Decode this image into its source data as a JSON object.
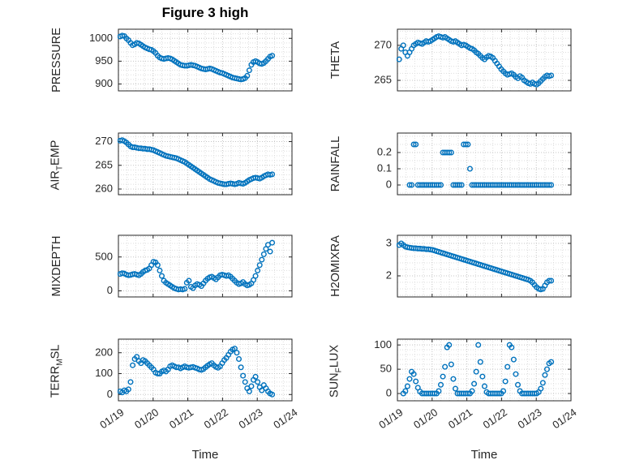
{
  "figure": {
    "title": "Figure 3 high",
    "xlabel": "Time",
    "marker_color": "#0072BD",
    "axis_color": "#262626",
    "grid_color": "#c4c4c4",
    "minor_grid_color": "#dddddd"
  },
  "x_axis": {
    "lim": [
      0,
      5
    ],
    "ticks": [
      0,
      1,
      2,
      3,
      4,
      5
    ],
    "labels": [
      "01/19",
      "01/20",
      "01/21",
      "01/22",
      "01/23",
      "01/24"
    ]
  },
  "chart_data": [
    {
      "name": "PRESSURE",
      "type": "scatter",
      "ylabel": "PRESSURE",
      "ylim": [
        885,
        1020
      ],
      "yticks": [
        900,
        950,
        1000
      ],
      "yminor": 10,
      "x0": 0.05,
      "dx": 0.06,
      "y": [
        1004,
        1006,
        1005,
        1000,
        996,
        990,
        985,
        987,
        990,
        989,
        986,
        983,
        980,
        978,
        976,
        975,
        972,
        968,
        962,
        958,
        956,
        955,
        956,
        957,
        956,
        954,
        951,
        948,
        945,
        942,
        941,
        940,
        940,
        941,
        942,
        941,
        940,
        938,
        936,
        934,
        933,
        932,
        933,
        934,
        933,
        931,
        929,
        927,
        925,
        924,
        922,
        920,
        918,
        916,
        914,
        913,
        912,
        911,
        910,
        911,
        913,
        918,
        930,
        942,
        948,
        950,
        948,
        945,
        944,
        946,
        950,
        955,
        960,
        962
      ]
    },
    {
      "name": "THETA",
      "type": "scatter",
      "ylabel": "THETA",
      "ylim": [
        263.5,
        272.3
      ],
      "yticks": [
        265,
        270
      ],
      "yminor": 1,
      "x0": 0.05,
      "dx": 0.06,
      "y": [
        268,
        269.5,
        270,
        269,
        268.5,
        269,
        269.5,
        270,
        270.2,
        270.4,
        270.3,
        270.2,
        270.4,
        270.6,
        270.5,
        270.6,
        270.8,
        271,
        271.2,
        271.3,
        271.2,
        271.1,
        271.2,
        271,
        270.8,
        270.6,
        270.5,
        270.6,
        270.4,
        270.2,
        270,
        270.1,
        270,
        269.8,
        269.6,
        269.5,
        269.3,
        269,
        268.8,
        268.5,
        268.2,
        268,
        268.3,
        268.5,
        268.4,
        268.2,
        267.8,
        267.4,
        267,
        266.6,
        266.3,
        266,
        265.8,
        265.9,
        266,
        265.8,
        265.5,
        265.3,
        265.6,
        265.4,
        265,
        264.8,
        264.6,
        264.5,
        264.7,
        264.5,
        264.4,
        264.6,
        264.9,
        265.2,
        265.5,
        265.7,
        265.6,
        265.7
      ]
    },
    {
      "name": "AIR_TEMP",
      "type": "scatter",
      "ylabel": "AIR_TEMP",
      "ylim": [
        258.8,
        271.8
      ],
      "yticks": [
        260,
        265,
        270
      ],
      "yminor": 1,
      "x0": 0.05,
      "dx": 0.06,
      "y": [
        270.2,
        270.3,
        270.1,
        269.8,
        269.4,
        269,
        268.8,
        268.8,
        268.7,
        268.6,
        268.6,
        268.5,
        268.5,
        268.4,
        268.4,
        268.3,
        268.2,
        268,
        267.8,
        267.6,
        267.4,
        267.2,
        267,
        266.9,
        266.8,
        266.7,
        266.6,
        266.5,
        266.3,
        266.1,
        265.9,
        265.7,
        265.4,
        265.1,
        264.8,
        264.5,
        264.2,
        263.9,
        263.6,
        263.3,
        263,
        262.7,
        262.4,
        262.1,
        261.9,
        261.7,
        261.5,
        261.3,
        261.2,
        261.1,
        261,
        261,
        261.1,
        261.2,
        261.1,
        261,
        261.1,
        261.3,
        261.2,
        261.1,
        261.3,
        261.6,
        261.9,
        262.1,
        262.3,
        262.4,
        262.3,
        262.2,
        262.4,
        262.7,
        262.9,
        263.1,
        263,
        263.1
      ]
    },
    {
      "name": "RAINFALL",
      "type": "scatter",
      "ylabel": "RAINFALL",
      "ylim": [
        -0.06,
        0.32
      ],
      "yticks": [
        0,
        0.1,
        0.2
      ],
      "yminor": 0.05,
      "x0": 0.05,
      "dx": 0.06,
      "y": [
        null,
        null,
        null,
        null,
        null,
        0,
        0,
        0.25,
        0.25,
        0,
        0,
        0,
        0,
        0,
        0,
        0,
        0,
        0,
        0,
        0,
        0,
        0.2,
        0.2,
        0.2,
        0.2,
        0.2,
        0,
        0,
        0,
        0,
        0,
        0.25,
        0.25,
        0.25,
        0.1,
        0,
        0,
        0,
        0,
        0,
        0,
        0,
        0,
        0,
        0,
        0,
        0,
        0,
        0,
        0,
        0,
        0,
        0,
        0,
        0,
        0,
        0,
        0,
        0,
        0,
        0,
        0,
        0,
        0,
        0,
        0,
        0,
        0,
        0,
        0,
        0,
        0,
        0,
        0
      ]
    },
    {
      "name": "MIXDEPTH",
      "type": "scatter",
      "ylabel": "MIXDEPTH",
      "ylim": [
        -90,
        820
      ],
      "yticks": [
        0,
        500
      ],
      "yminor": 100,
      "x0": 0.05,
      "dx": 0.06,
      "y": [
        250,
        260,
        255,
        240,
        230,
        235,
        245,
        250,
        240,
        230,
        250,
        280,
        300,
        310,
        330,
        380,
        430,
        420,
        380,
        300,
        220,
        150,
        120,
        100,
        80,
        60,
        40,
        30,
        20,
        25,
        20,
        30,
        120,
        150,
        60,
        40,
        80,
        100,
        90,
        70,
        110,
        150,
        180,
        200,
        210,
        190,
        170,
        200,
        230,
        240,
        230,
        220,
        230,
        210,
        180,
        150,
        120,
        100,
        110,
        130,
        100,
        80,
        90,
        110,
        160,
        220,
        300,
        380,
        460,
        540,
        620,
        680,
        580,
        710
      ]
    },
    {
      "name": "H2OMIXRA",
      "type": "scatter",
      "ylabel": "H2OMIXRA",
      "ylim": [
        1.35,
        3.25
      ],
      "yticks": [
        2,
        3
      ],
      "yminor": 0.2,
      "x0": 0.05,
      "dx": 0.06,
      "y": [
        2.95,
        3,
        2.95,
        2.9,
        2.88,
        2.87,
        2.86,
        2.85,
        2.85,
        2.84,
        2.84,
        2.83,
        2.83,
        2.82,
        2.82,
        2.81,
        2.8,
        2.78,
        2.76,
        2.74,
        2.72,
        2.7,
        2.68,
        2.66,
        2.64,
        2.62,
        2.6,
        2.58,
        2.56,
        2.54,
        2.52,
        2.5,
        2.48,
        2.46,
        2.44,
        2.42,
        2.4,
        2.38,
        2.36,
        2.34,
        2.32,
        2.3,
        2.28,
        2.26,
        2.24,
        2.22,
        2.2,
        2.18,
        2.16,
        2.14,
        2.12,
        2.1,
        2.08,
        2.06,
        2.04,
        2.02,
        2,
        1.98,
        1.96,
        1.94,
        1.92,
        1.9,
        1.88,
        1.85,
        1.8,
        1.72,
        1.65,
        1.6,
        1.58,
        1.6,
        1.7,
        1.8,
        1.85,
        1.85
      ]
    },
    {
      "name": "TERR_MSL",
      "type": "scatter",
      "ylabel": "TERR_MSL",
      "ylim": [
        -30,
        265
      ],
      "yticks": [
        0,
        100,
        200
      ],
      "yminor": 20,
      "x0": 0.05,
      "dx": 0.06,
      "y": [
        15,
        10,
        20,
        15,
        25,
        60,
        140,
        170,
        180,
        160,
        150,
        165,
        160,
        150,
        140,
        130,
        120,
        105,
        100,
        100,
        110,
        115,
        110,
        120,
        135,
        140,
        135,
        130,
        130,
        125,
        130,
        135,
        130,
        128,
        130,
        132,
        128,
        125,
        120,
        118,
        122,
        130,
        138,
        145,
        150,
        140,
        132,
        128,
        135,
        150,
        165,
        175,
        190,
        205,
        215,
        220,
        200,
        170,
        130,
        90,
        60,
        30,
        15,
        40,
        70,
        85,
        60,
        35,
        20,
        45,
        30,
        15,
        5,
        0
      ]
    },
    {
      "name": "SUN_FLUX",
      "type": "scatter",
      "ylabel": "SUN_FLUX",
      "ylim": [
        -15,
        112
      ],
      "yticks": [
        0,
        50,
        100
      ],
      "yminor": 10,
      "x0": 0.05,
      "dx": 0.06,
      "y": [
        null,
        null,
        0,
        5,
        15,
        30,
        45,
        40,
        25,
        12,
        4,
        0,
        0,
        0,
        0,
        0,
        0,
        0,
        0,
        5,
        18,
        35,
        55,
        95,
        100,
        60,
        30,
        10,
        0,
        0,
        0,
        0,
        0,
        0,
        0,
        5,
        20,
        45,
        100,
        65,
        35,
        15,
        3,
        0,
        0,
        0,
        0,
        0,
        0,
        0,
        5,
        25,
        55,
        100,
        95,
        70,
        40,
        18,
        5,
        0,
        0,
        0,
        0,
        0,
        0,
        0,
        0,
        3,
        10,
        22,
        38,
        50,
        62,
        65
      ]
    }
  ]
}
